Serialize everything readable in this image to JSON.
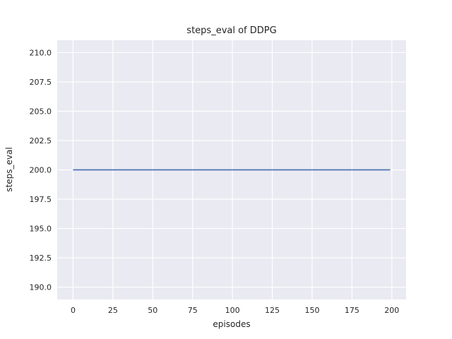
{
  "chart_data": {
    "type": "line",
    "title": "steps_eval of DDPG",
    "xlabel": "episodes",
    "ylabel": "steps_eval",
    "xlim": [
      -9.95,
      208.95
    ],
    "ylim": [
      188.95,
      211.05
    ],
    "grid": true,
    "legend": "none",
    "x_ticks": [
      0,
      25,
      50,
      75,
      100,
      125,
      150,
      175,
      200
    ],
    "x_tick_labels": [
      "0",
      "25",
      "50",
      "75",
      "100",
      "125",
      "150",
      "175",
      "200"
    ],
    "y_ticks": [
      190.0,
      192.5,
      195.0,
      197.5,
      200.0,
      202.5,
      205.0,
      207.5,
      210.0
    ],
    "y_tick_labels": [
      "190.0",
      "192.5",
      "195.0",
      "197.5",
      "200.0",
      "202.5",
      "205.0",
      "207.5",
      "210.0"
    ],
    "series": [
      {
        "name": "steps_eval",
        "x": [
          0,
          199
        ],
        "values": [
          200,
          200
        ]
      }
    ],
    "colors": {
      "line": "#4C72B0",
      "plot_background": "#EAEAF2",
      "grid": "#FFFFFF",
      "text": "#262626",
      "figure_background": "#FFFFFF"
    }
  }
}
